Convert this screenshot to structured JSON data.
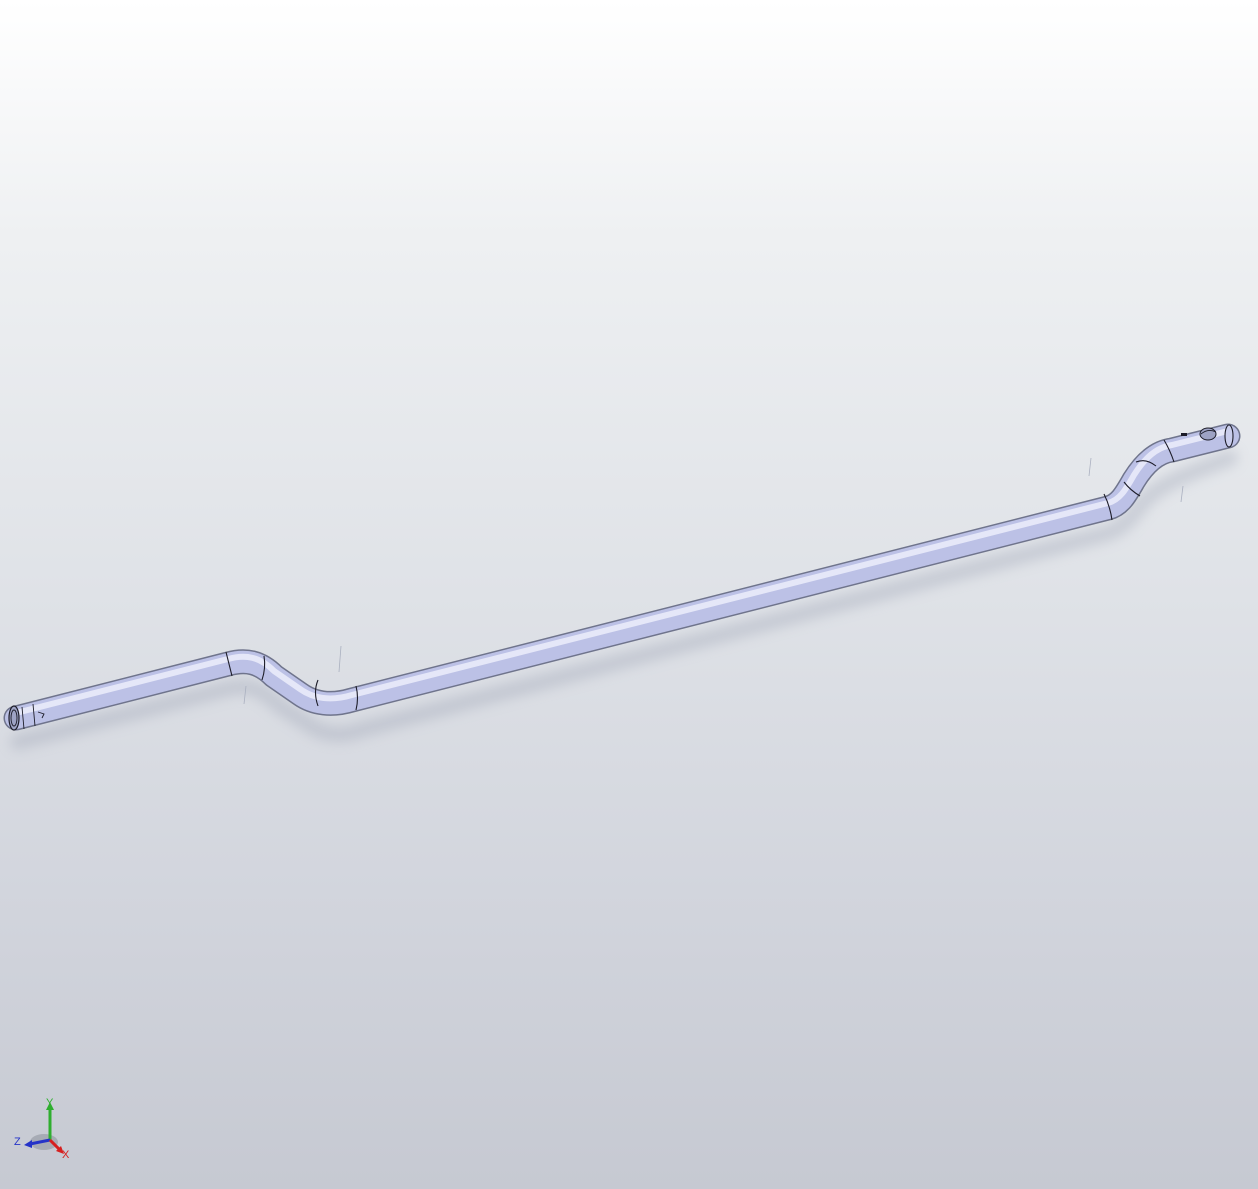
{
  "viewport": {
    "background_top": "#ffffff",
    "background_bottom": "#c6c9d2"
  },
  "model": {
    "name": "bent tube part",
    "body_color": "#bcc1e6",
    "highlight_color": "#e9ebfa",
    "edge_color": "#1c1c28",
    "shadow_color": "#8e93a6"
  },
  "triad": {
    "y_label": "Y",
    "z_label": "Z",
    "x_label": "X",
    "y_color": "#2fae2f",
    "z_color": "#2533c8",
    "x_color": "#d62020"
  }
}
